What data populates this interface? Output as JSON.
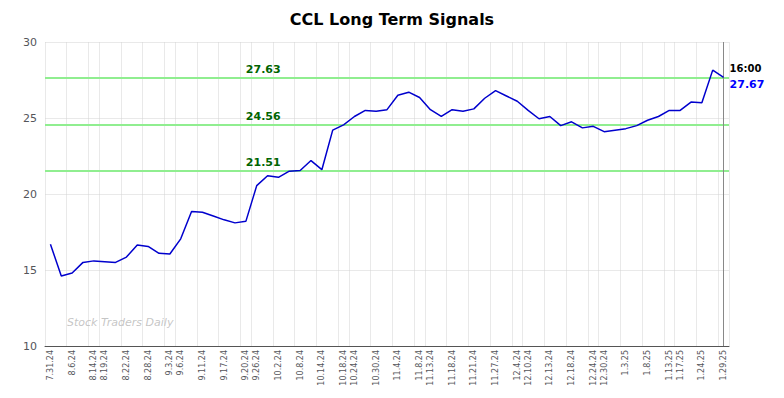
{
  "chart_data": {
    "type": "line",
    "title": "CCL Long Term Signals",
    "categories": [
      "7.31.24",
      null,
      "8.6.24",
      null,
      "8.14.24",
      "8.19.24",
      null,
      "8.22.24",
      null,
      "8.28.24",
      null,
      "9.3.24",
      "9.6.24",
      null,
      "9.11.24",
      null,
      "9.17.24",
      null,
      "9.20.24",
      "9.26.24",
      null,
      "10.2.24",
      null,
      "10.8.24",
      null,
      "10.14.24",
      null,
      "10.18.24",
      "10.24.24",
      null,
      "10.30.24",
      null,
      "11.4.24",
      null,
      "11.8.24",
      "11.13.24",
      null,
      "11.18.24",
      null,
      "11.21.24",
      null,
      "11.27.24",
      null,
      "12.4.24",
      "12.10.24",
      null,
      "12.13.24",
      null,
      "12.18.24",
      null,
      "12.24.24",
      "12.30.24",
      null,
      "1.3.25",
      null,
      "1.8.25",
      null,
      "1.13.25",
      "1.17.25",
      null,
      "1.24.25",
      null,
      "1.29.25"
    ],
    "values": [
      16.7,
      14.6,
      14.8,
      15.5,
      15.6,
      15.55,
      15.5,
      15.85,
      16.65,
      16.55,
      16.1,
      16.05,
      17.05,
      18.85,
      18.8,
      18.55,
      18.3,
      18.1,
      18.2,
      20.55,
      21.2,
      21.1,
      21.5,
      21.55,
      22.2,
      21.6,
      24.2,
      24.55,
      25.1,
      25.5,
      25.45,
      25.55,
      26.5,
      26.7,
      26.35,
      25.55,
      25.1,
      25.55,
      25.45,
      25.6,
      26.3,
      26.8,
      26.45,
      26.1,
      25.5,
      24.95,
      25.1,
      24.5,
      24.75,
      24.35,
      24.45,
      24.1,
      24.2,
      24.3,
      24.5,
      24.85,
      25.1,
      25.5,
      25.5,
      26.05,
      26.0,
      28.15,
      27.67
    ],
    "color": "#0000cd",
    "ylim": [
      10,
      30
    ],
    "yticks": [
      10,
      15,
      20,
      25,
      30
    ],
    "grid": true,
    "hlines": [
      {
        "value": 21.51,
        "label": "21.51"
      },
      {
        "value": 24.56,
        "label": "24.56"
      },
      {
        "value": 27.63,
        "label": "27.63"
      }
    ],
    "hline_color": "#90ee90",
    "hline_label_color": "#006400",
    "last_label": {
      "text": "16:00",
      "color": "#000000"
    },
    "last_price": {
      "value": 27.67,
      "label": "27.67",
      "color": "#0000ff"
    },
    "watermark": {
      "text": "Stock Traders Daily",
      "color": "#bbbbbb"
    }
  }
}
